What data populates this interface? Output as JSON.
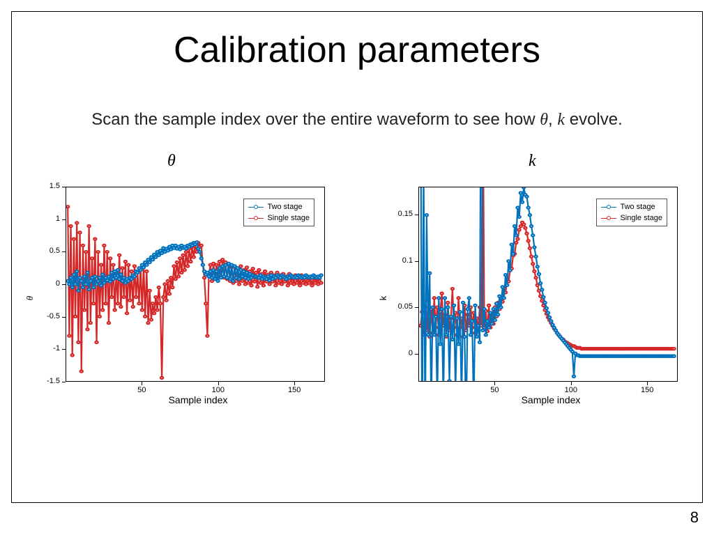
{
  "page_number": "8",
  "title": "Calibration parameters",
  "subtitle_pre": "Scan the sample index over the entire waveform to see how ",
  "subtitle_theta": "θ",
  "subtitle_sep": ", ",
  "subtitle_k": "k",
  "subtitle_post": " evolve.",
  "panel_titles": {
    "theta": "θ",
    "k": "k"
  },
  "colors": {
    "two_stage": "#0072bd",
    "single_stage": "#d62728",
    "axis": "#000000",
    "background": "#ffffff",
    "legend_border": "#555555"
  },
  "legend": {
    "items": [
      {
        "label": "Two stage",
        "color_key": "two_stage"
      },
      {
        "label": "Single stage",
        "color_key": "single_stage"
      }
    ]
  },
  "marker": {
    "radius": 2.4,
    "stroke_width": 1
  },
  "line": {
    "width": 1
  },
  "chart_theta": {
    "type": "line-marker",
    "xlim": [
      0,
      170
    ],
    "ylim": [
      -1.5,
      1.5
    ],
    "xticks": [
      50,
      100,
      150
    ],
    "yticks": [
      -1.5,
      -1,
      -0.5,
      0,
      0.5,
      1,
      1.5
    ],
    "xlabel": "Sample index",
    "ylabel": "θ",
    "label_fontsize": 13,
    "tick_fontsize": 11,
    "series": {
      "two_stage": [
        0.05,
        0.0,
        0.1,
        -0.05,
        0.15,
        0.0,
        0.2,
        -0.1,
        0.1,
        0.05,
        -0.05,
        0.12,
        0.0,
        0.18,
        -0.08,
        0.05,
        0.1,
        -0.05,
        0.12,
        0.0,
        0.05,
        0.1,
        -0.02,
        0.15,
        0.02,
        0.1,
        0.06,
        0.12,
        0.04,
        0.18,
        0.08,
        0.2,
        0.1,
        0.22,
        0.08,
        0.15,
        0.05,
        0.1,
        0.02,
        0.08,
        0.05,
        0.1,
        0.08,
        0.14,
        0.12,
        0.2,
        0.18,
        0.25,
        0.22,
        0.3,
        0.26,
        0.34,
        0.3,
        0.38,
        0.34,
        0.42,
        0.38,
        0.46,
        0.42,
        0.5,
        0.45,
        0.52,
        0.48,
        0.56,
        0.5,
        0.55,
        0.52,
        0.58,
        0.54,
        0.6,
        0.56,
        0.6,
        0.55,
        0.58,
        0.54,
        0.6,
        0.56,
        0.58,
        0.55,
        0.6,
        0.58,
        0.62,
        0.6,
        0.64,
        0.62,
        0.65,
        0.55,
        0.5,
        0.4,
        0.3,
        0.2,
        0.15,
        0.18,
        0.12,
        0.2,
        0.1,
        0.22,
        0.08,
        0.2,
        0.05,
        0.25,
        0.1,
        0.28,
        0.12,
        0.3,
        0.1,
        0.32,
        0.08,
        0.3,
        0.05,
        0.28,
        0.1,
        0.25,
        0.08,
        0.22,
        0.12,
        0.2,
        0.1,
        0.18,
        0.08,
        0.16,
        0.1,
        0.14,
        0.12,
        0.12,
        0.1,
        0.1,
        0.14,
        0.08,
        0.12,
        0.1,
        0.08,
        0.12,
        0.06,
        0.14,
        0.08,
        0.12,
        0.1,
        0.14,
        0.12,
        0.1,
        0.14,
        0.12,
        0.1,
        0.08,
        0.12,
        0.1,
        0.14,
        0.12,
        0.1,
        0.12,
        0.1,
        0.14,
        0.12,
        0.1,
        0.12,
        0.1,
        0.14,
        0.12,
        0.1,
        0.12,
        0.1,
        0.14,
        0.12,
        0.1,
        0.12,
        0.1,
        0.14
      ],
      "single_stage": [
        1.2,
        -0.8,
        0.9,
        -1.1,
        0.7,
        -0.5,
        0.95,
        -0.9,
        0.8,
        -1.35,
        0.6,
        -0.4,
        0.5,
        -0.7,
        0.9,
        -0.6,
        0.4,
        -0.3,
        0.7,
        -0.9,
        0.5,
        -0.5,
        0.3,
        -0.4,
        0.6,
        -0.3,
        0.5,
        -0.6,
        0.4,
        -0.2,
        0.3,
        -0.4,
        0.2,
        -0.3,
        0.45,
        -0.35,
        0.25,
        -0.2,
        0.35,
        -0.45,
        0.3,
        -0.25,
        0.2,
        -0.35,
        0.28,
        -0.2,
        0.18,
        -0.3,
        0.25,
        -0.4,
        0.3,
        -0.5,
        0.2,
        -0.6,
        -0.1,
        -0.55,
        -0.3,
        -0.45,
        -0.2,
        -0.4,
        -0.05,
        -0.3,
        -1.45,
        -0.2,
        0.0,
        -0.25,
        0.05,
        -0.15,
        0.1,
        -0.05,
        0.28,
        0.08,
        0.34,
        0.12,
        0.4,
        0.18,
        0.45,
        0.22,
        0.5,
        0.28,
        0.55,
        0.35,
        0.58,
        0.42,
        0.62,
        0.5,
        0.64,
        0.58,
        0.6,
        0.3,
        0.1,
        -0.3,
        -0.8,
        0.15,
        0.3,
        0.05,
        0.32,
        0.08,
        0.3,
        0.1,
        0.35,
        0.12,
        0.38,
        0.1,
        0.34,
        0.08,
        0.3,
        0.05,
        0.26,
        0.02,
        0.28,
        0.05,
        0.24,
        0.0,
        0.28,
        0.05,
        0.22,
        0.0,
        0.26,
        0.02,
        0.2,
        -0.02,
        0.24,
        0.04,
        0.18,
        -0.04,
        0.22,
        0.02,
        0.16,
        -0.02,
        0.2,
        0.04,
        0.15,
        0.0,
        0.18,
        0.04,
        0.14,
        -0.02,
        0.18,
        0.02,
        0.14,
        0.0,
        0.16,
        0.04,
        0.12,
        -0.02,
        0.16,
        0.02,
        0.12,
        0.0,
        0.14,
        0.02,
        0.1,
        -0.02,
        0.14,
        0.02,
        0.1,
        0.0,
        0.12,
        0.02,
        0.1,
        -0.02,
        0.12,
        0.02,
        0.08,
        0.0,
        0.12,
        0.02
      ]
    }
  },
  "chart_k": {
    "type": "line-marker",
    "xlim": [
      0,
      170
    ],
    "ylim": [
      -0.03,
      0.18
    ],
    "xticks": [
      50,
      100,
      150
    ],
    "yticks": [
      0,
      0.05,
      0.1,
      0.15
    ],
    "xlabel": "Sample index",
    "ylabel": "k",
    "label_fontsize": 13,
    "tick_fontsize": 11,
    "series": {
      "two_stage": [
        0.3,
        -0.1,
        0.2,
        -0.08,
        0.15,
        0.02,
        0.087,
        -0.06,
        0.05,
        0.02,
        0.04,
        -0.05,
        0.06,
        0.01,
        0.048,
        -0.05,
        0.06,
        0.02,
        0.05,
        -0.03,
        0.04,
        0.015,
        0.052,
        -0.04,
        0.038,
        0.01,
        0.045,
        -0.05,
        0.055,
        0.018,
        -0.08,
        0.048,
        0.06,
        0.02,
        0.035,
        -0.06,
        0.052,
        0.018,
        0.03,
        0.012,
        0.4,
        0.025,
        0.048,
        0.02,
        0.035,
        0.028,
        0.044,
        0.032,
        0.048,
        0.036,
        0.054,
        0.042,
        0.062,
        0.05,
        0.072,
        0.06,
        0.085,
        0.074,
        0.1,
        0.09,
        0.118,
        0.108,
        0.138,
        0.128,
        0.158,
        0.148,
        0.174,
        0.164,
        0.18,
        0.172,
        0.17,
        0.158,
        0.15,
        0.138,
        0.128,
        0.115,
        0.105,
        0.094,
        0.086,
        0.076,
        0.069,
        0.061,
        0.055,
        0.049,
        0.044,
        0.039,
        0.035,
        0.031,
        0.028,
        0.025,
        0.022,
        0.02,
        0.018,
        0.016,
        0.014,
        0.012,
        0.01,
        0.008,
        0.006,
        0.004,
        0.002,
        -0.025,
        0.0,
        -0.002,
        -0.002,
        -0.003,
        -0.003,
        -0.003,
        -0.003,
        -0.003,
        -0.003,
        -0.003,
        -0.003,
        -0.003,
        -0.003,
        -0.003,
        -0.003,
        -0.003,
        -0.003,
        -0.003,
        -0.003,
        -0.003,
        -0.003,
        -0.003,
        -0.003,
        -0.003,
        -0.003,
        -0.003,
        -0.003,
        -0.003,
        -0.003,
        -0.003,
        -0.003,
        -0.003,
        -0.003,
        -0.003,
        -0.003,
        -0.003,
        -0.003,
        -0.003,
        -0.003,
        -0.003,
        -0.003,
        -0.003,
        -0.003,
        -0.003,
        -0.003,
        -0.003,
        -0.003,
        -0.003,
        -0.003,
        -0.003,
        -0.003,
        -0.003,
        -0.003,
        -0.003,
        -0.003,
        -0.003,
        -0.003,
        -0.003,
        -0.003,
        -0.003,
        -0.003,
        -0.003,
        -0.003,
        -0.003,
        -0.003,
        -0.003
      ],
      "single_stage": [
        0.03,
        0.045,
        0.02,
        0.05,
        0.025,
        0.058,
        0.018,
        0.048,
        0.022,
        0.06,
        0.028,
        0.05,
        0.02,
        0.045,
        0.065,
        0.03,
        0.042,
        0.018,
        0.055,
        0.025,
        0.038,
        0.07,
        0.028,
        0.044,
        0.02,
        0.06,
        0.028,
        0.038,
        0.018,
        0.052,
        0.025,
        0.042,
        0.03,
        0.05,
        0.028,
        0.044,
        0.022,
        0.038,
        0.026,
        0.05,
        0.03,
        0.3,
        0.028,
        0.046,
        0.024,
        0.052,
        0.028,
        0.044,
        0.032,
        0.05,
        0.04,
        0.055,
        0.048,
        0.06,
        0.056,
        0.068,
        0.066,
        0.078,
        0.078,
        0.09,
        0.092,
        0.106,
        0.108,
        0.12,
        0.124,
        0.134,
        0.138,
        0.142,
        0.14,
        0.136,
        0.13,
        0.122,
        0.114,
        0.105,
        0.097,
        0.089,
        0.082,
        0.074,
        0.068,
        0.062,
        0.057,
        0.052,
        0.047,
        0.043,
        0.039,
        0.036,
        0.033,
        0.03,
        0.027,
        0.025,
        0.022,
        0.02,
        0.018,
        0.016,
        0.015,
        0.013,
        0.012,
        0.011,
        0.01,
        0.009,
        0.008,
        0.008,
        0.007,
        0.006,
        0.006,
        0.006,
        0.005,
        0.005,
        0.005,
        0.005,
        0.005,
        0.005,
        0.005,
        0.005,
        0.005,
        0.005,
        0.005,
        0.005,
        0.005,
        0.005,
        0.005,
        0.005,
        0.005,
        0.005,
        0.005,
        0.005,
        0.005,
        0.005,
        0.005,
        0.005,
        0.005,
        0.005,
        0.005,
        0.005,
        0.005,
        0.005,
        0.005,
        0.005,
        0.005,
        0.005,
        0.005,
        0.005,
        0.005,
        0.005,
        0.005,
        0.005,
        0.005,
        0.005,
        0.005,
        0.005,
        0.005,
        0.005,
        0.005,
        0.005,
        0.005,
        0.005,
        0.005,
        0.005,
        0.005,
        0.005,
        0.005,
        0.005,
        0.005,
        0.005,
        0.005,
        0.005,
        0.005,
        0.005
      ]
    }
  }
}
